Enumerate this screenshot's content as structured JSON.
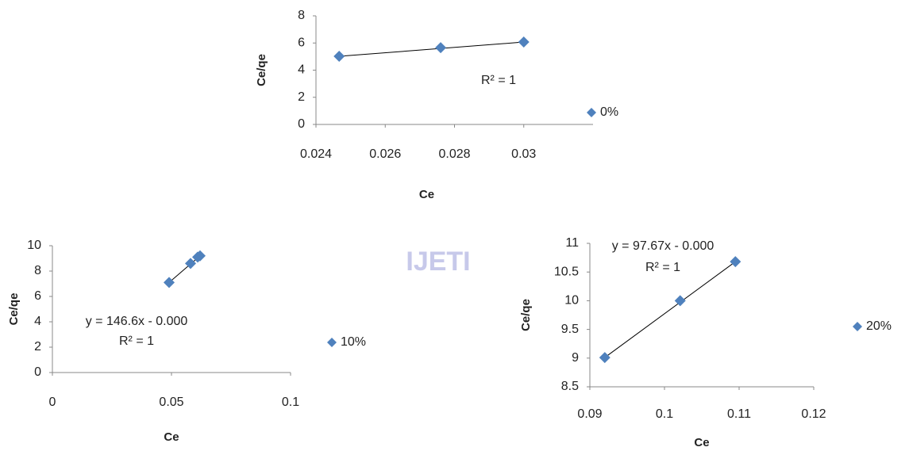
{
  "watermark": "IJETI",
  "chart_data": [
    {
      "type": "scatter",
      "x_label": "Ce",
      "y_label": "Ce/qe",
      "series": [
        {
          "name": "0%",
          "color": "#4f81bd",
          "x": [
            0.02467,
            0.0276,
            0.03
          ],
          "values": [
            5.02,
            5.66,
            6.07
          ]
        }
      ],
      "trendline": true,
      "annotations": [
        "R² = 1"
      ],
      "xlim": [
        0.024,
        0.032
      ],
      "xticks": [
        0.024,
        0.026,
        0.028,
        0.03
      ],
      "ylim": [
        0,
        8
      ],
      "yticks": [
        0,
        2,
        4,
        6,
        8
      ]
    },
    {
      "type": "scatter",
      "x_label": "Ce",
      "y_label": "Ce/qe",
      "series": [
        {
          "name": "10%",
          "color": "#4f81bd",
          "x": [
            0.049,
            0.058,
            0.061,
            0.062
          ],
          "values": [
            7.1,
            8.6,
            9.1,
            9.2
          ]
        }
      ],
      "trendline": true,
      "annotations": [
        "y = 146.6x - 0.000",
        "R² = 1"
      ],
      "xlim": [
        0,
        0.1
      ],
      "xticks": [
        0,
        0.05,
        0.1
      ],
      "ylim": [
        0,
        10
      ],
      "yticks": [
        0,
        2,
        4,
        6,
        8,
        10
      ]
    },
    {
      "type": "scatter",
      "x_label": "Ce",
      "y_label": "Ce/qe",
      "series": [
        {
          "name": "20%",
          "color": "#4f81bd",
          "x": [
            0.092,
            0.1021,
            0.1095
          ],
          "values": [
            9.01,
            10.0,
            10.68
          ]
        }
      ],
      "trendline": true,
      "annotations": [
        "y = 97.67x - 0.000",
        "R² = 1"
      ],
      "xlim": [
        0.09,
        0.12
      ],
      "xticks": [
        0.09,
        0.1,
        0.11,
        0.12
      ],
      "ylim": [
        8.5,
        11
      ],
      "yticks": [
        8.5,
        9,
        9.5,
        10,
        10.5,
        11
      ]
    }
  ]
}
